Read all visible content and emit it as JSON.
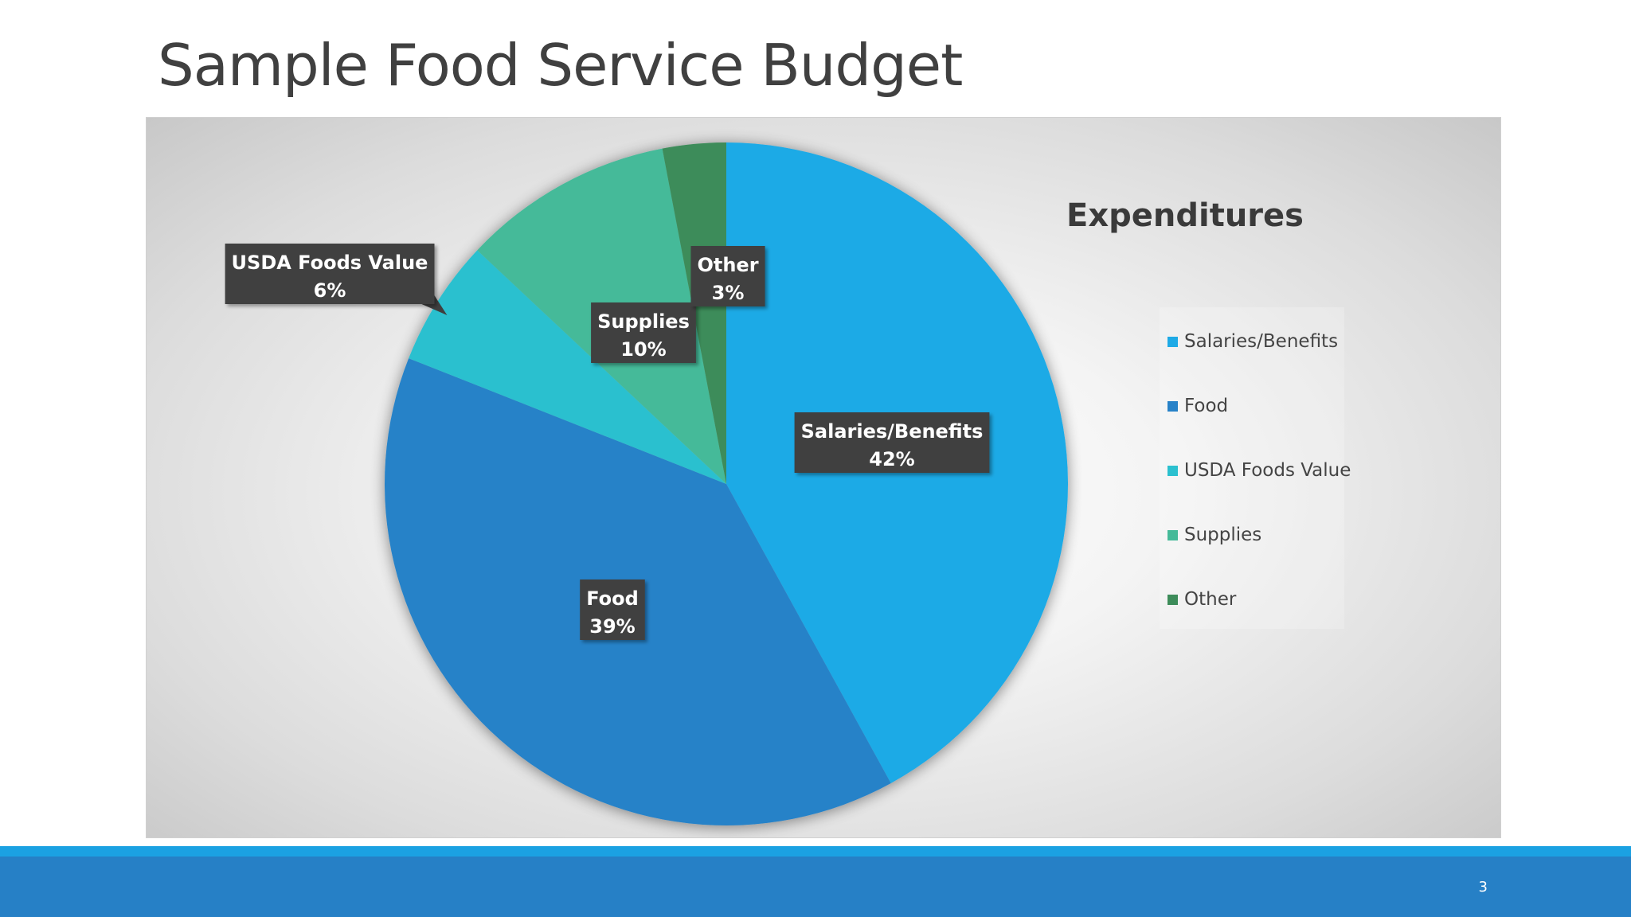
{
  "slide": {
    "title": "Sample Food Service Budget",
    "page_number": "3"
  },
  "colors": {
    "salaries": "#1EAAE6",
    "food": "#2782C8",
    "usda": "#2BC0CF",
    "supplies": "#45BA99",
    "other": "#3D8C5A",
    "footer_stripe": "#1BA1E2",
    "footer_bar": "#2680C6"
  },
  "chart_data": {
    "type": "pie",
    "title": "Expenditures",
    "legend_position": "right",
    "start_angle": "top, clockwise",
    "slices": [
      {
        "label": "Salaries/Benefits",
        "value": 42,
        "display": "42%",
        "color": "#1EAAE6"
      },
      {
        "label": "Food",
        "value": 39,
        "display": "39%",
        "color": "#2782C8"
      },
      {
        "label": "USDA Foods Value",
        "value": 6,
        "display": "6%",
        "color": "#2BC0CF"
      },
      {
        "label": "Supplies",
        "value": 10,
        "display": "10%",
        "color": "#45BA99"
      },
      {
        "label": "Other",
        "value": 3,
        "display": "3%",
        "color": "#3D8C5A"
      }
    ]
  }
}
